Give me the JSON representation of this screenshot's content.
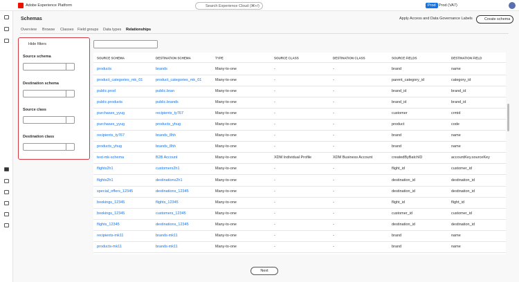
{
  "header": {
    "product": "Adobe Experience Platform",
    "search": "Search Experience Cloud (⌘+/)",
    "org_badge": "Prod",
    "org": "Prod (VA7)"
  },
  "page": {
    "title": "Schemas",
    "tabs": [
      "Overview",
      "Browse",
      "Classes",
      "Field groups",
      "Data types",
      "Relationships"
    ],
    "active_tab": 5,
    "actions": [
      "Apply Access and Data Governance Labels",
      "Create schema"
    ]
  },
  "filters": {
    "toggle": "Hide filters",
    "groups": [
      "Source schema",
      "Destination schema",
      "Source class",
      "Destination class"
    ]
  },
  "table": {
    "columns": [
      "SOURCE SCHEMA",
      "DESTINATION SCHEMA",
      "TYPE",
      "SOURCE CLASS",
      "DESTINATION CLASS",
      "SOURCE FIELDS",
      "DESTINATION FIELD"
    ],
    "rows": [
      [
        "products",
        "brands",
        "Many-to-one",
        "-",
        "-",
        "brand",
        "name"
      ],
      [
        "product_categories_mk_01",
        "product_categories_mk_01",
        "Many-to-one",
        "-",
        "-",
        "parent_category_id",
        "category_id"
      ],
      [
        "public.prod",
        "public.bran",
        "Many-to-one",
        "-",
        "-",
        "brand_id",
        "brand_id"
      ],
      [
        "public.products",
        "public.brands",
        "Many-to-one",
        "-",
        "-",
        "brand_id",
        "brand_id"
      ],
      [
        "purchases_yyug",
        "recipients_ty767",
        "Many-to-one",
        "-",
        "-",
        "customer",
        "crmid"
      ],
      [
        "purchases_yyug",
        "products_yhug",
        "Many-to-one",
        "-",
        "-",
        "product",
        "code"
      ],
      [
        "recipients_ty767",
        "brands_8hh",
        "Many-to-one",
        "-",
        "-",
        "brand",
        "name"
      ],
      [
        "products_yhug",
        "brands_8hh",
        "Many-to-one",
        "-",
        "-",
        "brand",
        "name"
      ],
      [
        "test-mk-schema",
        "B2B Account",
        "Many-to-one",
        "XDM Individual Profile",
        "XDM Business Account",
        "createdByBatchID",
        "accountKey.sourceKey"
      ],
      [
        "flights2h1",
        "customers2h1",
        "Many-to-one",
        "-",
        "-",
        "flight_id",
        "customer_id"
      ],
      [
        "flights2h1",
        "destinations2h1",
        "Many-to-one",
        "-",
        "-",
        "destination_id",
        "destination_id"
      ],
      [
        "special_offers_12345",
        "destinations_12345",
        "Many-to-one",
        "-",
        "-",
        "destination_id",
        "destination_id"
      ],
      [
        "bookings_12345",
        "flights_12345",
        "Many-to-one",
        "-",
        "-",
        "flight_id",
        "flight_id"
      ],
      [
        "bookings_12345",
        "customers_12345",
        "Many-to-one",
        "-",
        "-",
        "customer_id",
        "customer_id"
      ],
      [
        "flights_12345",
        "destinations_12345",
        "Many-to-one",
        "-",
        "-",
        "destination_id",
        "destination_id"
      ],
      [
        "recipients-mk11",
        "brands-mk11",
        "Many-to-one",
        "-",
        "-",
        "brand",
        "name"
      ],
      [
        "products-mk11",
        "brands-mk11",
        "Many-to-one",
        "-",
        "-",
        "brand",
        "name"
      ]
    ]
  },
  "pagination": {
    "next": "Next"
  }
}
